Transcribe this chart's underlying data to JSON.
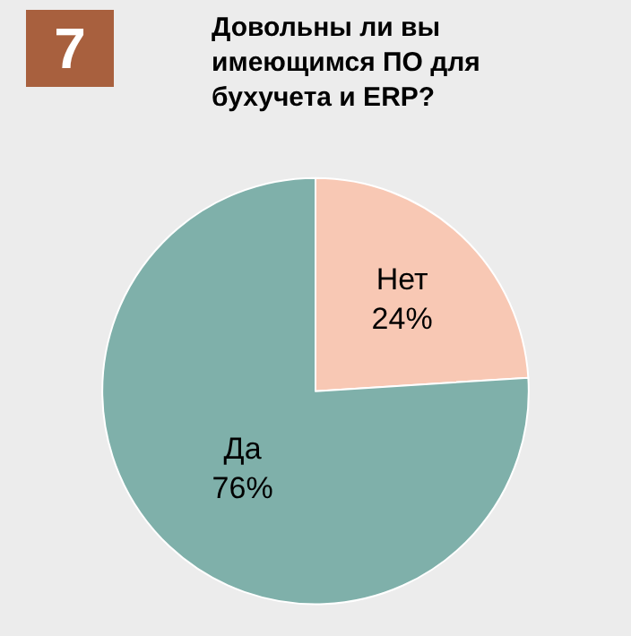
{
  "chart_data": {
    "type": "pie",
    "title": "Довольны ли вы имеющимся ПО для бухучета и ERP?",
    "categories": [
      "Нет",
      "Да"
    ],
    "values": [
      24,
      76
    ],
    "value_labels": [
      "24%",
      "76%"
    ],
    "colors": [
      "#f8c8b4",
      "#7fb0aa"
    ],
    "annotations": [
      "7"
    ],
    "legend": false
  }
}
